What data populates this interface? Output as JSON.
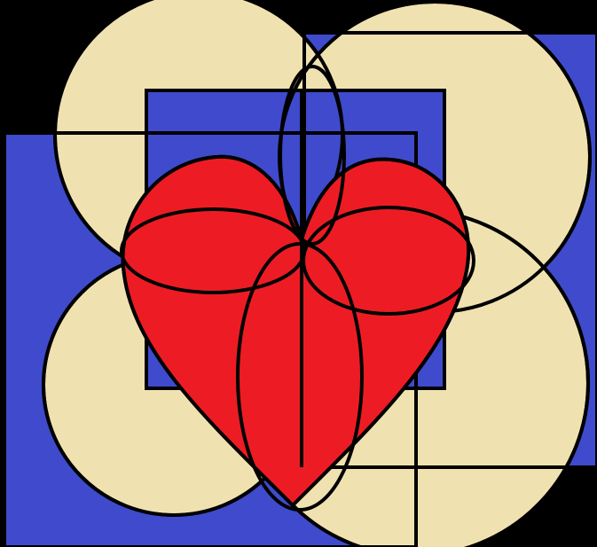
{
  "colors": {
    "background": "#000000",
    "square_fill": "#3f4bcc",
    "circle_fill": "#f0e2b0",
    "heart_fill": "#ed1c24",
    "stroke": "#000000"
  },
  "shapes": {
    "squares": [
      "square-left",
      "square-right",
      "square-center"
    ],
    "circles": [
      "circle-top-left",
      "circle-top-right",
      "circle-bottom-left",
      "circle-bottom-right"
    ],
    "petals": [
      "petal-left",
      "petal-right",
      "petal-top",
      "petal-bottom"
    ],
    "heart": "heart"
  }
}
